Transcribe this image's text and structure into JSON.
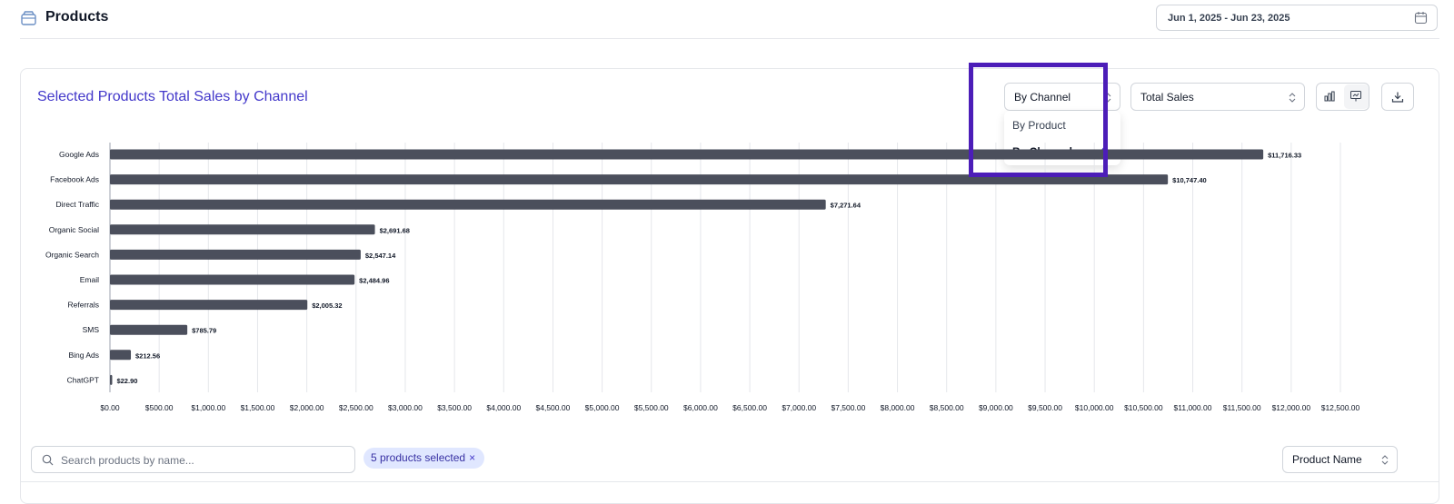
{
  "header": {
    "title": "Products",
    "date_range": "Jun 1, 2025 - Jun 23, 2025"
  },
  "card": {
    "title": "Selected Products Total Sales by Channel",
    "group_select": {
      "value": "By Channel",
      "options": [
        "By Product",
        "By Channel"
      ],
      "selected": "By Channel"
    },
    "metric_select": {
      "value": "Total Sales"
    }
  },
  "filters": {
    "search_placeholder": "Search products by name...",
    "chip_label": "5 products selected",
    "chip_remove": "×",
    "sort_value": "Product Name"
  },
  "colors": {
    "bar": "#4b4f5c",
    "accent": "#4338ca",
    "highlight": "#4c1db8",
    "grid": "#e5e7eb"
  },
  "chart_data": {
    "type": "bar",
    "orientation": "horizontal",
    "categories": [
      "Google Ads",
      "Facebook Ads",
      "Direct Traffic",
      "Organic Social",
      "Organic Search",
      "Email",
      "Referrals",
      "SMS",
      "Bing Ads",
      "ChatGPT"
    ],
    "values": [
      11716.33,
      10747.4,
      7271.64,
      2691.68,
      2547.14,
      2484.96,
      2005.32,
      785.79,
      212.56,
      22.9
    ],
    "value_labels": [
      "$11,716.33",
      "$10,747.40",
      "$7,271.64",
      "$2,691.68",
      "$2,547.14",
      "$2,484.96",
      "$2,005.32",
      "$785.79",
      "$212.56",
      "$22.90"
    ],
    "x_ticks": [
      0,
      500,
      1000,
      1500,
      2000,
      2500,
      3000,
      3500,
      4000,
      4500,
      5000,
      5500,
      6000,
      6500,
      7000,
      7500,
      8000,
      8500,
      9000,
      9500,
      10000,
      10500,
      11000,
      11500,
      12000,
      12500
    ],
    "x_tick_labels": [
      "$0.00",
      "$500.00",
      "$1,000.00",
      "$1,500.00",
      "$2,000.00",
      "$2,500.00",
      "$3,000.00",
      "$3,500.00",
      "$4,000.00",
      "$4,500.00",
      "$5,000.00",
      "$5,500.00",
      "$6,000.00",
      "$6,500.00",
      "$7,000.00",
      "$7,500.00",
      "$8,000.00",
      "$8,500.00",
      "$9,000.00",
      "$9,500.00",
      "$10,000.00",
      "$10,500.00",
      "$11,000.00",
      "$11,500.00",
      "$12,000.00",
      "$12,500.00"
    ],
    "xlim": [
      0,
      12500
    ],
    "grid": true
  }
}
